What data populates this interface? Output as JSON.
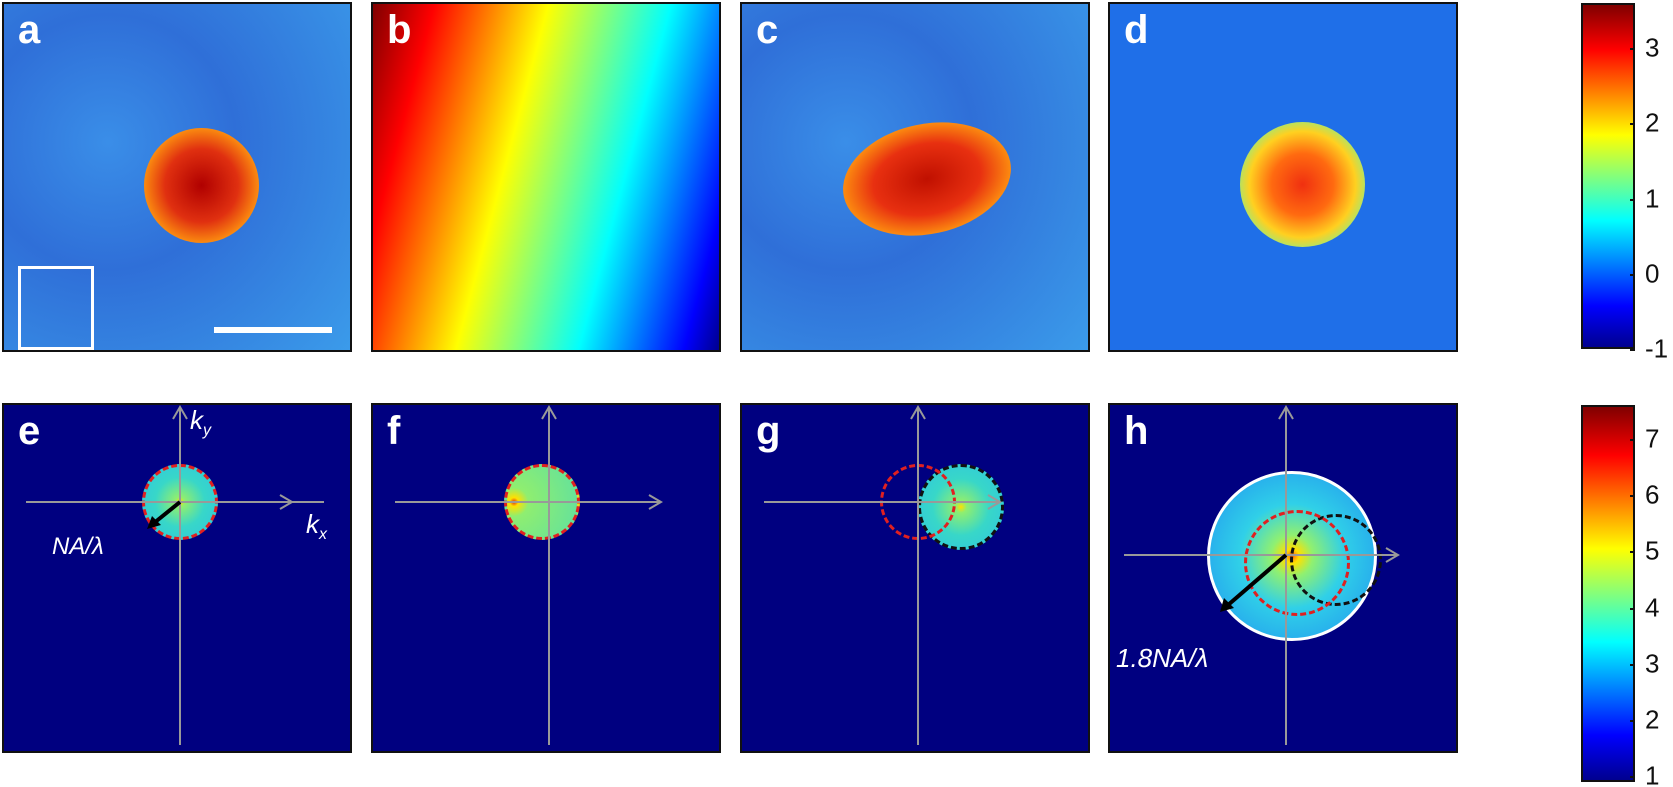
{
  "panels_top": [
    "a",
    "b",
    "c",
    "d"
  ],
  "panels_bottom": [
    "e",
    "f",
    "g",
    "h"
  ],
  "annotations": {
    "ky": "k",
    "ky_sub": "y",
    "kx": "k",
    "kx_sub": "x",
    "na": "NA/λ",
    "na18": "1.8NA/λ"
  },
  "colorbar_top": {
    "ticks": [
      "3",
      "2",
      "1",
      "0",
      "-1"
    ],
    "range": [
      -1,
      3.6
    ]
  },
  "colorbar_bottom": {
    "ticks": [
      "7",
      "6",
      "5",
      "4",
      "3",
      "2",
      "1"
    ],
    "range": [
      0.9,
      7.6
    ]
  }
}
